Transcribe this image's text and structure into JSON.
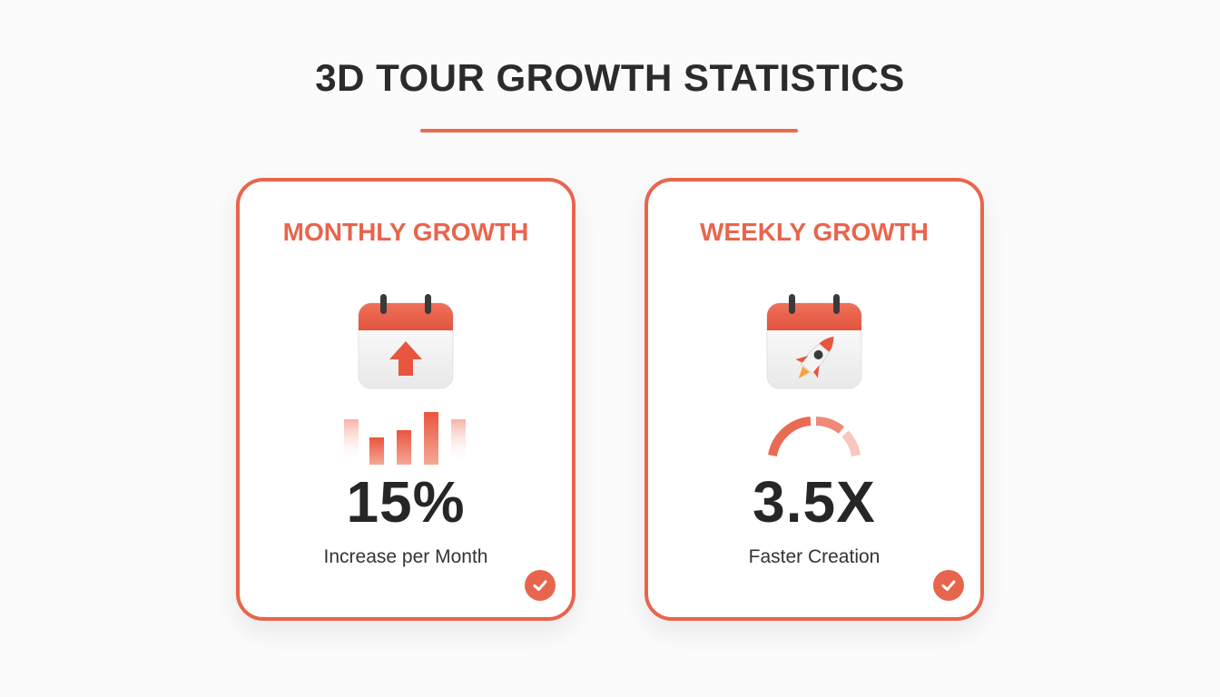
{
  "header": {
    "title": "3D TOUR GROWTH STATISTICS"
  },
  "colors": {
    "accent": "#e8654d",
    "text": "#262626",
    "background": "#fbfbfb"
  },
  "cards": [
    {
      "title": "MONTHLY GROWTH",
      "icon": "calendar-up-arrow-icon",
      "mini_graphic": "bar-chart-icon",
      "value": "15%",
      "caption": "Increase per Month",
      "badge_icon": "check-icon"
    },
    {
      "title": "WEEKLY GROWTH",
      "icon": "calendar-rocket-icon",
      "mini_graphic": "gauge-icon",
      "value": "3.5X",
      "caption": "Faster Creation",
      "badge_icon": "check-icon"
    }
  ]
}
